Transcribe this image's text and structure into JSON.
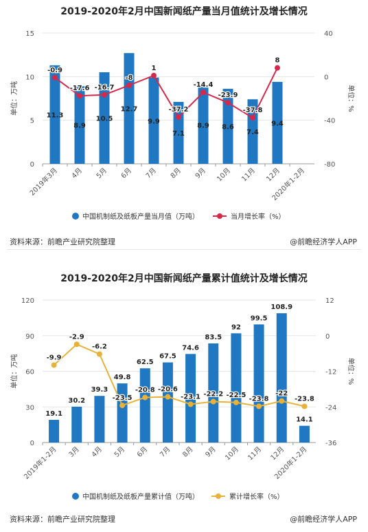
{
  "chart_data": [
    {
      "type": "bar",
      "title": "2019-2020年2月中国新闻纸产量当月值统计及增长情况",
      "ylabel": "单位：万吨",
      "y2label": "单位：%",
      "ylim": [
        0,
        15
      ],
      "y2lim": [
        -80,
        40
      ],
      "yticks": [
        0,
        5,
        10,
        15
      ],
      "y2ticks": [
        -80,
        -40,
        0,
        40
      ],
      "categories": [
        "2019年3月",
        "4月",
        "5月",
        "6月",
        "7月",
        "8月",
        "9月",
        "10月",
        "11月",
        "12月",
        "2020年1-2月"
      ],
      "bar_labels": [
        "11.3",
        "8.9",
        "10.5",
        "12.7",
        "9.9",
        "7.1",
        "8.9",
        "8.6",
        "7.4",
        "9.4",
        ""
      ],
      "line_labels": [
        "-0.9",
        "-17.6",
        "-16.7",
        "-8",
        "1",
        "-37.2",
        "-14.4",
        "-23.9",
        "-37.8",
        "8",
        ""
      ],
      "series": [
        {
          "name": "中国机制纸及纸板产量当月值（万吨）",
          "kind": "bar",
          "axis": "left",
          "color": "#1f78c1",
          "values": [
            11.3,
            8.9,
            10.5,
            12.7,
            9.9,
            7.1,
            8.9,
            8.6,
            7.4,
            9.4,
            null
          ]
        },
        {
          "name": "当月增长率（%）",
          "kind": "line",
          "axis": "right",
          "color": "#d6284b",
          "values": [
            -0.9,
            -17.6,
            -16.7,
            -8,
            1,
            -37.2,
            -14.4,
            -23.9,
            -37.8,
            8,
            null
          ]
        }
      ],
      "legend": "bottom",
      "source": "资料来源：前瞻产业研究院整理",
      "credit": "@前瞻经济学人APP"
    },
    {
      "type": "bar",
      "title": "2019-2020年2月中国新闻纸产量累计值统计及增长情况",
      "ylabel": "单位：万吨",
      "y2label": "单位：%",
      "ylim": [
        0,
        120
      ],
      "y2lim": [
        -36,
        12
      ],
      "yticks": [
        0,
        30,
        60,
        90,
        120
      ],
      "y2ticks": [
        -36,
        -24,
        -12,
        0,
        12
      ],
      "categories": [
        "2019年1-2月",
        "3月",
        "4月",
        "5月",
        "6月",
        "7月",
        "8月",
        "9月",
        "10月",
        "11月",
        "12月",
        "2020年1-2月"
      ],
      "bar_labels": [
        "19.1",
        "30.2",
        "39.3",
        "49.8",
        "62.5",
        "67.5",
        "74.6",
        "83.5",
        "92",
        "99.5",
        "108.9",
        "14.1"
      ],
      "line_labels": [
        "-9.9",
        "-2.9",
        "-6.2",
        "-23.5",
        "-20.8",
        "-20.6",
        "-23.1",
        "-22.2",
        "-22.5",
        "-23.8",
        "-22",
        "-23.8"
      ],
      "series": [
        {
          "name": "中国机制纸及纸板产量累计值（万吨）",
          "kind": "bar",
          "axis": "left",
          "color": "#1f78c1",
          "values": [
            19.1,
            30.2,
            39.3,
            49.8,
            62.5,
            67.5,
            74.6,
            83.5,
            92,
            99.5,
            108.9,
            14.1
          ]
        },
        {
          "name": "累计增长率（%）",
          "kind": "line",
          "axis": "right",
          "color": "#e8b23a",
          "values": [
            -9.9,
            -2.9,
            -6.2,
            -23.5,
            -20.8,
            -20.6,
            -23.1,
            -22.2,
            -22.5,
            -23.8,
            -22,
            -23.8
          ]
        }
      ],
      "legend": "bottom",
      "source": "资料来源：前瞻产业研究院整理",
      "credit": "@前瞻经济学人APP"
    }
  ]
}
